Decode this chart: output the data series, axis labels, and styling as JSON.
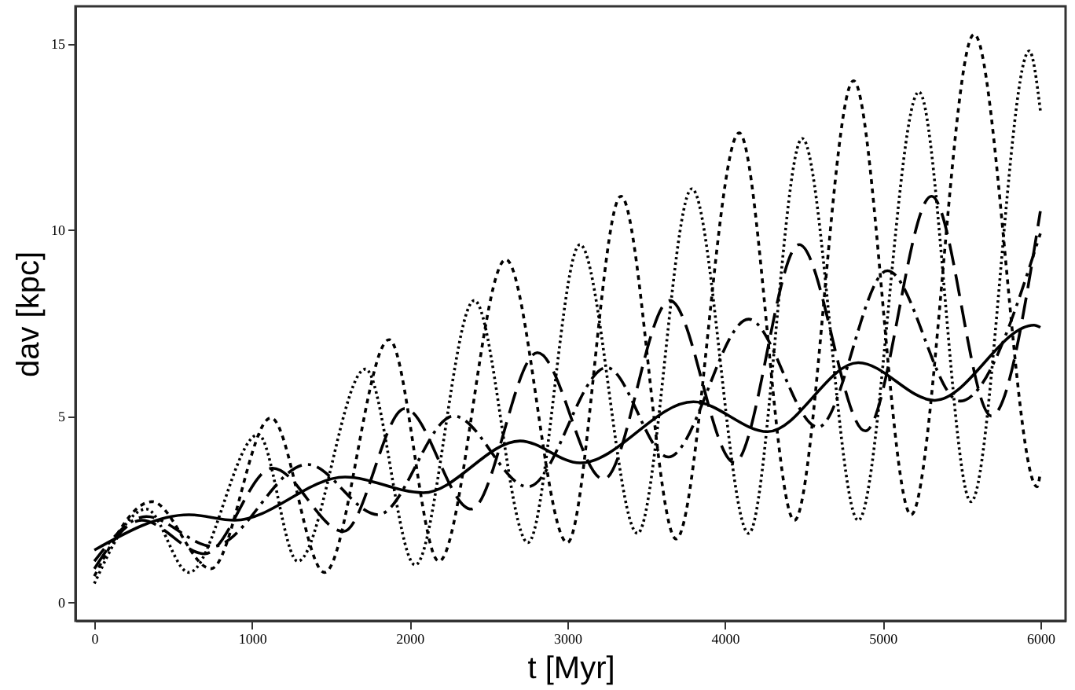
{
  "chart_data": {
    "type": "line",
    "xlabel": "t [Myr]",
    "ylabel": "dav [kpc]",
    "xlim": [
      -120,
      6160
    ],
    "ylim": [
      -0.5,
      16
    ],
    "xticks": [
      0,
      1000,
      2000,
      3000,
      4000,
      5000,
      6000
    ],
    "yticks": [
      0,
      5,
      10,
      15
    ],
    "grid": false,
    "marker": "none",
    "series": [
      {
        "color": "#000000",
        "line_style": "solid",
        "x": [
          0,
          600,
          890,
          1590,
          2085,
          2700,
          3080,
          3800,
          4270,
          4845,
          5330,
          5960,
          6000
        ],
        "values": [
          1.4,
          2.35,
          2.2,
          3.36,
          2.94,
          4.33,
          3.74,
          5.38,
          4.58,
          6.43,
          5.42,
          7.44,
          7.38
        ]
      },
      {
        "color": "#000000",
        "line_style": "dashed",
        "x": [
          0,
          300,
          700,
          1130,
          1580,
          1970,
          2390,
          2810,
          3230,
          3650,
          4060,
          4470,
          4890,
          5310,
          5690,
          6000
        ],
        "values": [
          0.9,
          2.2,
          1.3,
          3.6,
          1.9,
          5.2,
          2.5,
          6.7,
          3.3,
          8.1,
          3.75,
          9.6,
          4.6,
          10.9,
          5.0,
          10.5
        ]
      },
      {
        "color": "#000000",
        "line_style": "dashdot",
        "x": [
          0,
          330,
          750,
          1350,
          1800,
          2280,
          2750,
          3250,
          3640,
          4150,
          4590,
          5030,
          5490,
          6000
        ],
        "values": [
          1.1,
          2.3,
          1.5,
          3.7,
          2.35,
          5.0,
          3.1,
          6.3,
          3.9,
          7.6,
          4.7,
          8.9,
          5.4,
          9.9
        ]
      },
      {
        "color": "#000000",
        "line_style": "dotted",
        "x": [
          0,
          330,
          600,
          1040,
          1290,
          1720,
          2035,
          2410,
          2750,
          3080,
          3445,
          3790,
          4150,
          4490,
          4845,
          5230,
          5560,
          5930,
          6000
        ],
        "values": [
          0.5,
          2.5,
          0.8,
          4.5,
          1.1,
          6.26,
          1.0,
          8.1,
          1.6,
          9.6,
          1.85,
          11.1,
          1.85,
          12.45,
          2.2,
          13.7,
          2.7,
          14.8,
          13.2
        ]
      },
      {
        "color": "#000000",
        "line_style": "shortdashed",
        "x": [
          0,
          365,
          740,
          1120,
          1460,
          1870,
          2185,
          2610,
          3000,
          3340,
          3690,
          4090,
          4440,
          4815,
          5180,
          5580,
          5980,
          6000
        ],
        "values": [
          0.7,
          2.7,
          0.9,
          4.95,
          0.8,
          7.05,
          1.1,
          9.2,
          1.6,
          10.9,
          1.7,
          12.6,
          2.2,
          14.0,
          2.35,
          15.25,
          3.1,
          3.5
        ]
      }
    ]
  }
}
